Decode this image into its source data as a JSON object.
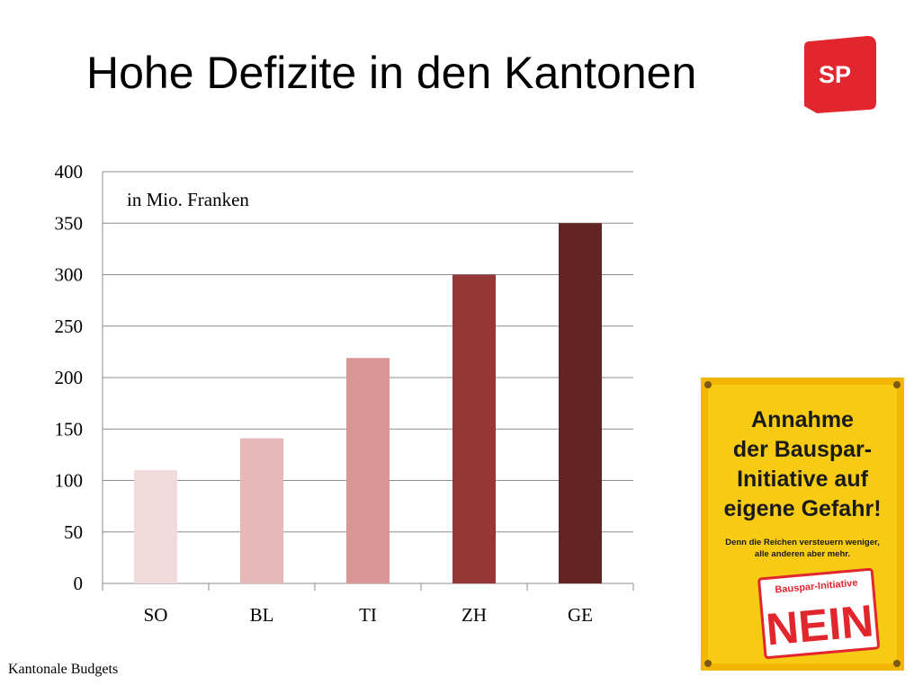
{
  "slide": {
    "title": "Hohe Defizite in den Kantonen",
    "source": "Kantonale Budgets"
  },
  "logo": {
    "text": "SP",
    "color": "#e1262d",
    "icon": "party-logo-icon"
  },
  "chart_data": {
    "type": "bar",
    "title": "",
    "xlabel": "",
    "ylabel": "",
    "annotation": "in Mio. Franken",
    "categories": [
      "SO",
      "BL",
      "TI",
      "ZH",
      "GE"
    ],
    "values": [
      110,
      141,
      219,
      300,
      350
    ],
    "colors": [
      "#f1dada",
      "#e6b8b7",
      "#d99694",
      "#953735",
      "#632523"
    ],
    "ylim": [
      0,
      400
    ],
    "yticks": [
      0,
      50,
      100,
      150,
      200,
      250,
      300,
      350,
      400
    ],
    "grid": true,
    "legend": "none"
  },
  "poster": {
    "background": "#f5c400",
    "headline": [
      "Annahme",
      "der Bauspar-",
      "Initiative auf",
      "eigene Gefahr!"
    ],
    "subline": [
      "Denn die Reichen versteuern weniger,",
      "alle anderen aber mehr."
    ],
    "sign_label": "Bauspar-Initiative",
    "sign_vote": "NEIN"
  }
}
